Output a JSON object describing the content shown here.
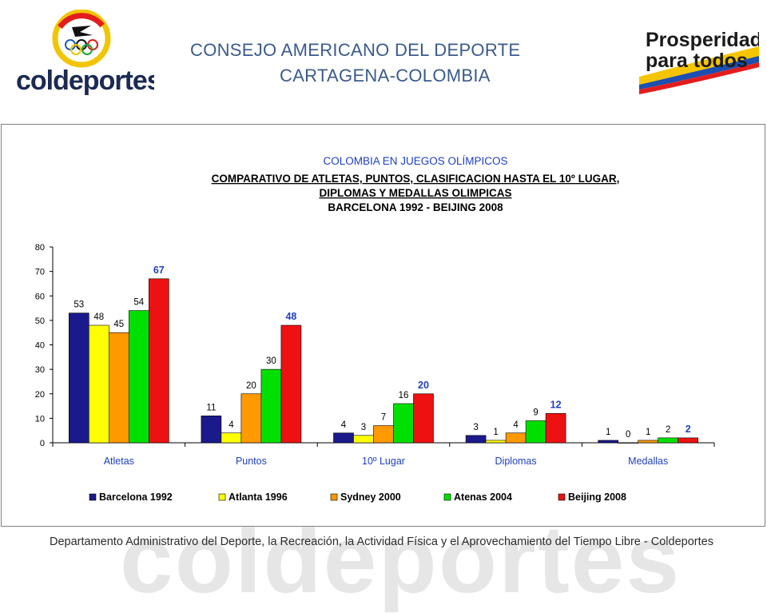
{
  "header": {
    "line1": "CONSEJO AMERICANO DEL DEPORTE",
    "line2": "CARTAGENA-COLOMBIA"
  },
  "logos": {
    "left_text": "coldeportes",
    "right_line1": "Prosperidad",
    "right_line2": "para todos"
  },
  "footer": {
    "text": "Departamento Administrativo del Deporte, la Recreación, la Actividad Física y el Aprovechamiento del Tiempo Libre - Coldeportes",
    "watermark": "coldeportes"
  },
  "chart_data": {
    "type": "bar",
    "title_lines": [
      "COLOMBIA EN JUEGOS OLÍMPICOS",
      "COMPARATIVO DE ATLETAS, PUNTOS, CLASIFICACION HASTA EL 10º LUGAR,",
      "DIPLOMAS Y MEDALLAS OLIMPICAS",
      "BARCELONA 1992 - BEIJING 2008"
    ],
    "categories": [
      "Atletas",
      "Puntos",
      "10º Lugar",
      "Diplomas",
      "Medallas"
    ],
    "series": [
      {
        "name": "Barcelona 1992",
        "color": "#1a1a8c",
        "values": [
          53,
          11,
          4,
          3,
          1
        ]
      },
      {
        "name": "Atlanta 1996",
        "color": "#ffff00",
        "values": [
          48,
          4,
          3,
          1,
          0
        ]
      },
      {
        "name": "Sydney 2000",
        "color": "#ff9900",
        "values": [
          45,
          20,
          7,
          4,
          1
        ]
      },
      {
        "name": "Atenas 2004",
        "color": "#00e000",
        "values": [
          54,
          30,
          16,
          9,
          2
        ]
      },
      {
        "name": "Beijing 2008",
        "color": "#ee1111",
        "values": [
          67,
          48,
          20,
          12,
          2
        ]
      }
    ],
    "ylim": [
      0,
      80
    ],
    "yticks": [
      0,
      10,
      20,
      30,
      40,
      50,
      60,
      70,
      80
    ],
    "legend": "bottom",
    "highlight_label_color": "#1f3fbf"
  }
}
